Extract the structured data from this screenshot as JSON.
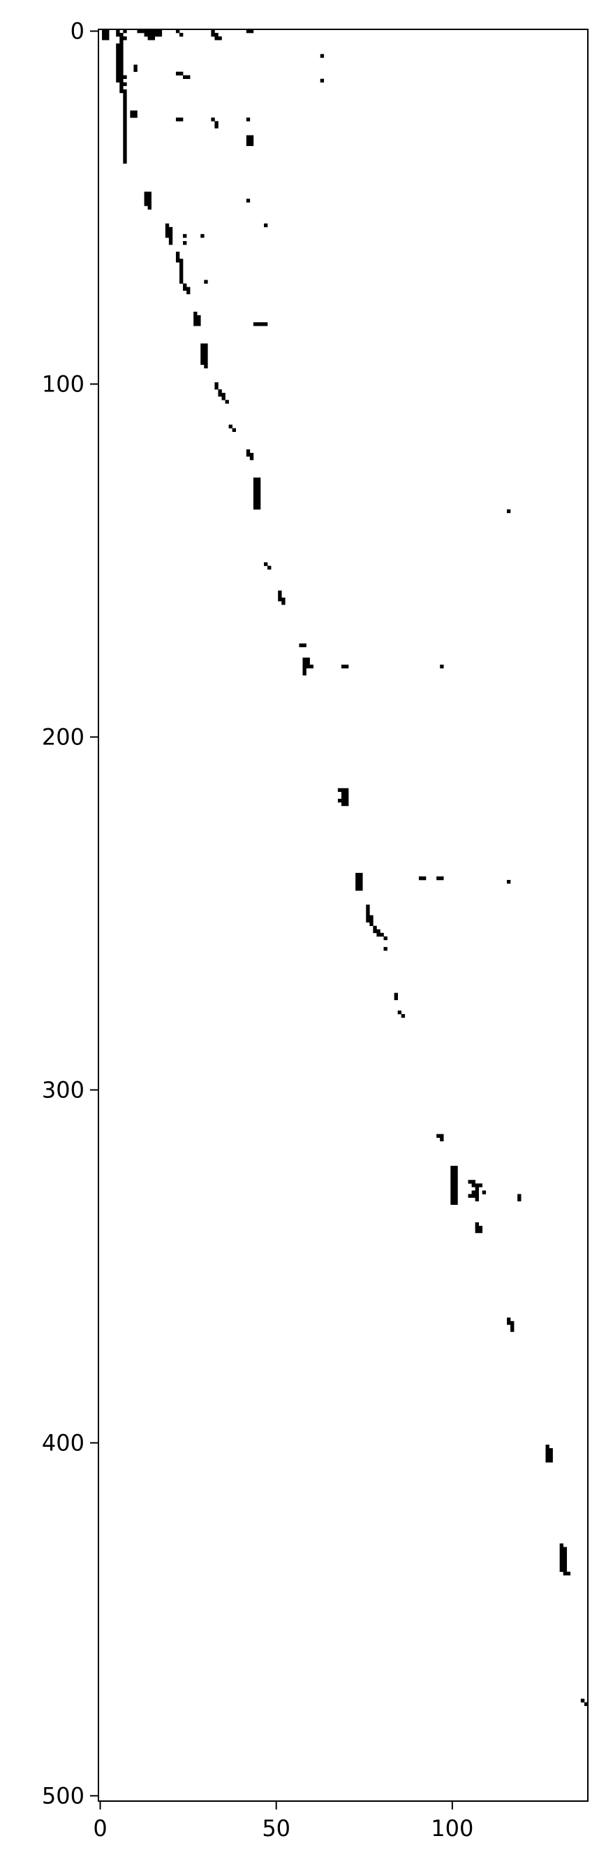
{
  "chart_data": {
    "type": "heatmap",
    "title": "",
    "xlabel": "",
    "ylabel": "",
    "xlim": [
      -0.5,
      138.5
    ],
    "ylim": [
      501.5,
      -0.5
    ],
    "x_ticks": [
      0,
      50,
      100
    ],
    "y_ticks": [
      0,
      100,
      200,
      300,
      400,
      500
    ],
    "x_tick_labels": [
      "0",
      "50",
      "100"
    ],
    "y_tick_labels": [
      "0",
      "100",
      "200",
      "300",
      "400",
      "500"
    ],
    "grid": false,
    "legend": "none",
    "colors": {
      "filled": "#000000",
      "empty": "#ffffff"
    },
    "nonzero_cells": [
      [
        1,
        0
      ],
      [
        1,
        1
      ],
      [
        1,
        2
      ],
      [
        2,
        0
      ],
      [
        2,
        1
      ],
      [
        2,
        2
      ],
      [
        5,
        0
      ],
      [
        5,
        1
      ],
      [
        6,
        1
      ],
      [
        6,
        2
      ],
      [
        7,
        0
      ],
      [
        7,
        2
      ],
      [
        11,
        0
      ],
      [
        12,
        0
      ],
      [
        13,
        0
      ],
      [
        13,
        1
      ],
      [
        14,
        0
      ],
      [
        14,
        1
      ],
      [
        14,
        2
      ],
      [
        15,
        0
      ],
      [
        15,
        1
      ],
      [
        15,
        2
      ],
      [
        16,
        0
      ],
      [
        16,
        1
      ],
      [
        17,
        0
      ],
      [
        17,
        1
      ],
      [
        22,
        0
      ],
      [
        23,
        1
      ],
      [
        32,
        0
      ],
      [
        32,
        1
      ],
      [
        33,
        1
      ],
      [
        33,
        2
      ],
      [
        34,
        2
      ],
      [
        42,
        0
      ],
      [
        43,
        0
      ],
      [
        5,
        4
      ],
      [
        5,
        5
      ],
      [
        5,
        6
      ],
      [
        5,
        7
      ],
      [
        5,
        8
      ],
      [
        5,
        9
      ],
      [
        5,
        10
      ],
      [
        5,
        11
      ],
      [
        5,
        12
      ],
      [
        5,
        13
      ],
      [
        5,
        14
      ],
      [
        6,
        3
      ],
      [
        6,
        4
      ],
      [
        6,
        5
      ],
      [
        6,
        6
      ],
      [
        6,
        7
      ],
      [
        6,
        8
      ],
      [
        6,
        9
      ],
      [
        6,
        10
      ],
      [
        6,
        11
      ],
      [
        6,
        12
      ],
      [
        6,
        13
      ],
      [
        6,
        14
      ],
      [
        6,
        15
      ],
      [
        6,
        16
      ],
      [
        6,
        17
      ],
      [
        7,
        13
      ],
      [
        7,
        15
      ],
      [
        7,
        17
      ],
      [
        7,
        18
      ],
      [
        7,
        19
      ],
      [
        7,
        20
      ],
      [
        7,
        21
      ],
      [
        7,
        22
      ],
      [
        7,
        23
      ],
      [
        7,
        24
      ],
      [
        7,
        25
      ],
      [
        7,
        26
      ],
      [
        7,
        27
      ],
      [
        7,
        28
      ],
      [
        7,
        29
      ],
      [
        7,
        30
      ],
      [
        7,
        31
      ],
      [
        7,
        32
      ],
      [
        7,
        33
      ],
      [
        7,
        34
      ],
      [
        7,
        35
      ],
      [
        7,
        36
      ],
      [
        7,
        37
      ],
      [
        10,
        10
      ],
      [
        10,
        11
      ],
      [
        9,
        23
      ],
      [
        10,
        23
      ],
      [
        10,
        24
      ],
      [
        9,
        24
      ],
      [
        22,
        12
      ],
      [
        23,
        12
      ],
      [
        24,
        13
      ],
      [
        25,
        13
      ],
      [
        22,
        25
      ],
      [
        23,
        25
      ],
      [
        32,
        25
      ],
      [
        33,
        26
      ],
      [
        33,
        27
      ],
      [
        42,
        25
      ],
      [
        42,
        30
      ],
      [
        43,
        30
      ],
      [
        42,
        31
      ],
      [
        43,
        31
      ],
      [
        42,
        32
      ],
      [
        43,
        32
      ],
      [
        63,
        7
      ],
      [
        63,
        14
      ],
      [
        42,
        48
      ],
      [
        47,
        55
      ],
      [
        47,
        83
      ],
      [
        46,
        83
      ],
      [
        45,
        83
      ],
      [
        44,
        83
      ],
      [
        13,
        46
      ],
      [
        13,
        47
      ],
      [
        13,
        48
      ],
      [
        13,
        49
      ],
      [
        14,
        46
      ],
      [
        14,
        47
      ],
      [
        14,
        48
      ],
      [
        14,
        49
      ],
      [
        14,
        50
      ],
      [
        19,
        55
      ],
      [
        19,
        56
      ],
      [
        19,
        57
      ],
      [
        19,
        58
      ],
      [
        20,
        56
      ],
      [
        20,
        57
      ],
      [
        20,
        58
      ],
      [
        20,
        59
      ],
      [
        20,
        60
      ],
      [
        24,
        58
      ],
      [
        24,
        60
      ],
      [
        29,
        58
      ],
      [
        30,
        71
      ],
      [
        22,
        63
      ],
      [
        22,
        64
      ],
      [
        22,
        65
      ],
      [
        23,
        65
      ],
      [
        23,
        66
      ],
      [
        23,
        67
      ],
      [
        23,
        68
      ],
      [
        23,
        69
      ],
      [
        23,
        70
      ],
      [
        23,
        71
      ],
      [
        24,
        72
      ],
      [
        24,
        73
      ],
      [
        25,
        73
      ],
      [
        25,
        74
      ],
      [
        27,
        80
      ],
      [
        27,
        81
      ],
      [
        27,
        82
      ],
      [
        27,
        83
      ],
      [
        28,
        81
      ],
      [
        28,
        82
      ],
      [
        28,
        83
      ],
      [
        29,
        89
      ],
      [
        29,
        90
      ],
      [
        29,
        91
      ],
      [
        29,
        92
      ],
      [
        29,
        93
      ],
      [
        29,
        94
      ],
      [
        30,
        89
      ],
      [
        30,
        90
      ],
      [
        30,
        91
      ],
      [
        30,
        92
      ],
      [
        30,
        93
      ],
      [
        30,
        94
      ],
      [
        30,
        95
      ],
      [
        33,
        100
      ],
      [
        33,
        101
      ],
      [
        34,
        102
      ],
      [
        34,
        103
      ],
      [
        35,
        103
      ],
      [
        35,
        104
      ],
      [
        36,
        105
      ],
      [
        37,
        112
      ],
      [
        38,
        113
      ],
      [
        42,
        119
      ],
      [
        42,
        120
      ],
      [
        43,
        120
      ],
      [
        43,
        121
      ],
      [
        44,
        127
      ],
      [
        44,
        128
      ],
      [
        44,
        129
      ],
      [
        44,
        130
      ],
      [
        44,
        131
      ],
      [
        44,
        132
      ],
      [
        44,
        133
      ],
      [
        44,
        134
      ],
      [
        44,
        135
      ],
      [
        45,
        127
      ],
      [
        45,
        128
      ],
      [
        45,
        129
      ],
      [
        45,
        130
      ],
      [
        45,
        131
      ],
      [
        45,
        132
      ],
      [
        45,
        133
      ],
      [
        45,
        134
      ],
      [
        45,
        135
      ],
      [
        47,
        151
      ],
      [
        48,
        152
      ],
      [
        51,
        159
      ],
      [
        51,
        160
      ],
      [
        51,
        161
      ],
      [
        52,
        161
      ],
      [
        52,
        162
      ],
      [
        57,
        174
      ],
      [
        58,
        174
      ],
      [
        58,
        178
      ],
      [
        58,
        179
      ],
      [
        58,
        180
      ],
      [
        58,
        181
      ],
      [
        58,
        182
      ],
      [
        59,
        178
      ],
      [
        59,
        179
      ],
      [
        59,
        180
      ],
      [
        60,
        180
      ],
      [
        69,
        180
      ],
      [
        70,
        180
      ],
      [
        97,
        180
      ],
      [
        116,
        136
      ],
      [
        69,
        215
      ],
      [
        69,
        216
      ],
      [
        69,
        217
      ],
      [
        69,
        218
      ],
      [
        69,
        219
      ],
      [
        70,
        215
      ],
      [
        70,
        216
      ],
      [
        70,
        217
      ],
      [
        70,
        218
      ],
      [
        70,
        219
      ],
      [
        68,
        215
      ],
      [
        68,
        218
      ],
      [
        73,
        239
      ],
      [
        73,
        240
      ],
      [
        73,
        241
      ],
      [
        73,
        242
      ],
      [
        73,
        243
      ],
      [
        74,
        239
      ],
      [
        74,
        240
      ],
      [
        74,
        241
      ],
      [
        74,
        242
      ],
      [
        74,
        243
      ],
      [
        91,
        240
      ],
      [
        92,
        240
      ],
      [
        96,
        240
      ],
      [
        97,
        240
      ],
      [
        116,
        241
      ],
      [
        76,
        248
      ],
      [
        76,
        249
      ],
      [
        76,
        250
      ],
      [
        76,
        251
      ],
      [
        76,
        252
      ],
      [
        77,
        251
      ],
      [
        77,
        252
      ],
      [
        77,
        253
      ],
      [
        78,
        254
      ],
      [
        78,
        255
      ],
      [
        79,
        255
      ],
      [
        79,
        256
      ],
      [
        80,
        256
      ],
      [
        81,
        257
      ],
      [
        81,
        260
      ],
      [
        84,
        273
      ],
      [
        84,
        274
      ],
      [
        85,
        278
      ],
      [
        86,
        279
      ],
      [
        96,
        313
      ],
      [
        97,
        313
      ],
      [
        97,
        314
      ],
      [
        100,
        322
      ],
      [
        100,
        323
      ],
      [
        100,
        324
      ],
      [
        100,
        325
      ],
      [
        100,
        326
      ],
      [
        100,
        327
      ],
      [
        100,
        328
      ],
      [
        100,
        329
      ],
      [
        100,
        330
      ],
      [
        100,
        331
      ],
      [
        100,
        332
      ],
      [
        101,
        322
      ],
      [
        101,
        323
      ],
      [
        101,
        324
      ],
      [
        101,
        325
      ],
      [
        101,
        326
      ],
      [
        101,
        327
      ],
      [
        101,
        328
      ],
      [
        101,
        329
      ],
      [
        101,
        330
      ],
      [
        101,
        331
      ],
      [
        101,
        332
      ],
      [
        106,
        326
      ],
      [
        106,
        327
      ],
      [
        106,
        329
      ],
      [
        106,
        330
      ],
      [
        107,
        327
      ],
      [
        107,
        328
      ],
      [
        107,
        329
      ],
      [
        107,
        330
      ],
      [
        107,
        331
      ],
      [
        108,
        327
      ],
      [
        109,
        329
      ],
      [
        105,
        326
      ],
      [
        105,
        330
      ],
      [
        119,
        330
      ],
      [
        119,
        331
      ],
      [
        107,
        338
      ],
      [
        107,
        339
      ],
      [
        107,
        340
      ],
      [
        108,
        339
      ],
      [
        108,
        340
      ],
      [
        116,
        365
      ],
      [
        116,
        366
      ],
      [
        117,
        366
      ],
      [
        117,
        367
      ],
      [
        117,
        368
      ],
      [
        127,
        401
      ],
      [
        127,
        402
      ],
      [
        127,
        403
      ],
      [
        127,
        404
      ],
      [
        127,
        405
      ],
      [
        128,
        402
      ],
      [
        128,
        403
      ],
      [
        128,
        404
      ],
      [
        128,
        405
      ],
      [
        131,
        429
      ],
      [
        131,
        430
      ],
      [
        131,
        431
      ],
      [
        131,
        432
      ],
      [
        131,
        433
      ],
      [
        131,
        434
      ],
      [
        131,
        435
      ],
      [
        131,
        436
      ],
      [
        132,
        430
      ],
      [
        132,
        431
      ],
      [
        132,
        432
      ],
      [
        132,
        433
      ],
      [
        132,
        434
      ],
      [
        132,
        435
      ],
      [
        132,
        436
      ],
      [
        132,
        437
      ],
      [
        133,
        437
      ],
      [
        137,
        473
      ],
      [
        138,
        474
      ]
    ]
  }
}
